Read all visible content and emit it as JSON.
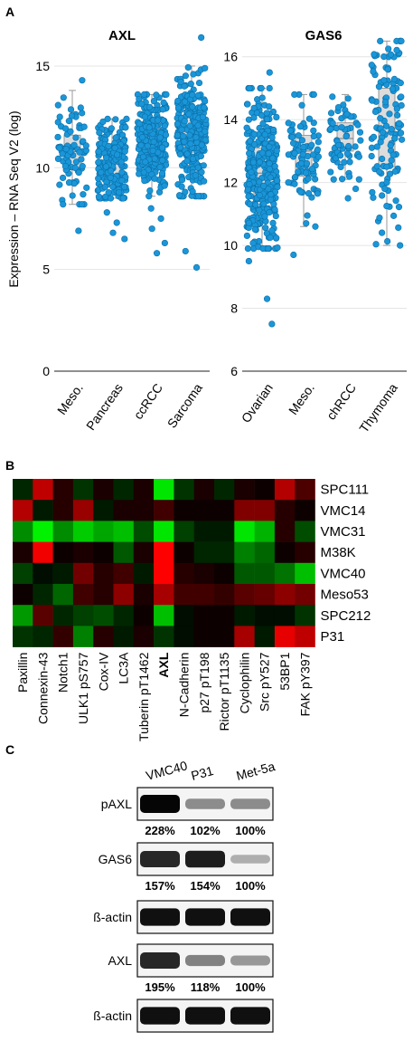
{
  "panel_labels": [
    "A",
    "B",
    "C"
  ],
  "chart_data": [
    {
      "type": "scatter",
      "title": "AXL",
      "ylabel": "Expression – RNA Seq V2 (log)",
      "ylim": [
        0,
        17
      ],
      "yticks": [
        0,
        5,
        10,
        15
      ],
      "categories": [
        "Meso.",
        "Pancreas",
        "ccRCC",
        "Sarcoma"
      ],
      "grid": "horizontal",
      "boxes": [
        {
          "category": "Meso.",
          "min": 8.2,
          "q1": 9.9,
          "median": 10.8,
          "q3": 11.6,
          "max": 13.8,
          "n": 85
        },
        {
          "category": "Pancreas",
          "min": 8.5,
          "q1": 9.6,
          "median": 10.3,
          "q3": 11.0,
          "max": 12.4,
          "n": 180
        },
        {
          "category": "ccRCC",
          "min": 8.6,
          "q1": 10.6,
          "median": 11.3,
          "q3": 12.1,
          "max": 13.6,
          "n": 260
        },
        {
          "category": "Sarcoma",
          "min": 8.6,
          "q1": 10.6,
          "median": 11.5,
          "q3": 12.6,
          "max": 15.0,
          "n": 260
        }
      ],
      "outliers": [
        {
          "category": "Meso.",
          "values": [
            6.9,
            14.3
          ]
        },
        {
          "category": "Pancreas",
          "values": [
            6.5,
            6.8,
            7.3,
            7.8
          ]
        },
        {
          "category": "ccRCC",
          "values": [
            5.8,
            6.3,
            7.0,
            7.5,
            8.0
          ]
        },
        {
          "category": "Sarcoma",
          "values": [
            5.1,
            5.9,
            16.4
          ]
        }
      ]
    },
    {
      "type": "scatter",
      "title": "GAS6",
      "ylabel": "",
      "ylim": [
        6,
        17
      ],
      "yticks": [
        6,
        8,
        10,
        12,
        14,
        16
      ],
      "categories": [
        "Ovarian",
        "Meso.",
        "chRCC",
        "Thymoma"
      ],
      "grid": "horizontal",
      "boxes": [
        {
          "category": "Ovarian",
          "min": 9.9,
          "q1": 11.4,
          "median": 12.3,
          "q3": 13.1,
          "max": 15.0,
          "n": 300
        },
        {
          "category": "Meso.",
          "min": 10.6,
          "q1": 12.2,
          "median": 13.0,
          "q3": 13.5,
          "max": 14.8,
          "n": 85
        },
        {
          "category": "chRCC",
          "min": 12.1,
          "q1": 13.0,
          "median": 13.4,
          "q3": 13.9,
          "max": 14.8,
          "n": 65
        },
        {
          "category": "Thymoma",
          "min": 10.0,
          "q1": 12.5,
          "median": 13.6,
          "q3": 15.0,
          "max": 16.5,
          "n": 120
        }
      ],
      "outliers": [
        {
          "category": "Ovarian",
          "values": [
            7.5,
            8.3,
            9.5,
            15.5
          ]
        },
        {
          "category": "Meso.",
          "values": [
            9.7
          ]
        },
        {
          "category": "chRCC",
          "values": [
            11.5,
            11.8
          ]
        },
        {
          "category": "Thymoma",
          "values": []
        }
      ]
    },
    {
      "type": "heatmap",
      "rows": [
        "SPC111",
        "VMC14",
        "VMC31",
        "M38K",
        "VMC40",
        "Meso53",
        "SPC212",
        "P31"
      ],
      "columns": [
        "Paxillin",
        "Connexin-43",
        "Notch1",
        "ULK1 pS757",
        "Cox-IV",
        "LC3A",
        "Tuberin pT1462",
        "AXL",
        "N-Cadherin",
        "p27 pT198",
        "Rictor pT1135",
        "Cyclophilin",
        "Src pY527",
        "53BP1",
        "FAK pY397"
      ],
      "bold_column": "AXL",
      "scale": "red = high, green = low (signed level -1 to 1)",
      "values": [
        [
          -0.15,
          0.75,
          0.15,
          -0.2,
          0.1,
          -0.15,
          0.1,
          -0.9,
          -0.2,
          0.1,
          -0.15,
          0.1,
          0.05,
          0.7,
          0.3
        ],
        [
          0.7,
          -0.1,
          0.15,
          0.6,
          -0.1,
          0.1,
          0.1,
          0.25,
          0.05,
          0.05,
          0.05,
          0.5,
          0.5,
          0.15,
          0.05
        ],
        [
          -0.55,
          -0.95,
          -0.55,
          -0.8,
          -0.65,
          -0.75,
          -0.3,
          -0.9,
          -0.25,
          -0.1,
          -0.1,
          -0.9,
          -0.7,
          0.15,
          -0.3
        ],
        [
          0.1,
          0.95,
          0.05,
          0.1,
          0.05,
          -0.35,
          0.1,
          1.0,
          0.05,
          -0.15,
          -0.15,
          -0.5,
          -0.4,
          0.05,
          0.15
        ],
        [
          -0.25,
          -0.05,
          -0.1,
          0.45,
          0.15,
          0.25,
          -0.1,
          1.0,
          0.15,
          0.1,
          0.05,
          -0.35,
          -0.35,
          -0.45,
          -0.75
        ],
        [
          0.05,
          -0.15,
          -0.4,
          0.25,
          0.15,
          0.55,
          0.1,
          0.65,
          0.25,
          0.25,
          0.2,
          0.35,
          0.4,
          0.55,
          0.45
        ],
        [
          -0.6,
          0.35,
          -0.15,
          -0.25,
          -0.3,
          -0.15,
          0.05,
          -0.75,
          -0.05,
          0.05,
          0.05,
          -0.1,
          -0.05,
          -0.05,
          -0.2
        ],
        [
          -0.2,
          -0.15,
          0.2,
          -0.5,
          0.15,
          -0.1,
          0.1,
          -0.2,
          -0.05,
          0.05,
          0.05,
          0.65,
          -0.1,
          0.9,
          0.75
        ]
      ]
    },
    {
      "type": "table",
      "columns": [
        "VMC40",
        "P31",
        "Met-5a"
      ],
      "blots": [
        {
          "label": "pAXL",
          "intensity": [
            1.0,
            0.4,
            0.4
          ],
          "percentages": [
            "228%",
            "102%",
            "100%"
          ]
        },
        {
          "label": "GAS6",
          "intensity": [
            0.85,
            0.9,
            0.25
          ],
          "percentages": [
            "157%",
            "154%",
            "100%"
          ]
        },
        {
          "label": "ß-actin",
          "intensity": [
            0.95,
            0.95,
            0.95
          ],
          "percentages": []
        },
        {
          "label": "AXL",
          "intensity": [
            0.85,
            0.45,
            0.35
          ],
          "percentages": [
            "195%",
            "118%",
            "100%"
          ]
        },
        {
          "label": "ß-actin",
          "intensity": [
            0.95,
            0.95,
            0.95
          ],
          "percentages": []
        }
      ]
    }
  ]
}
